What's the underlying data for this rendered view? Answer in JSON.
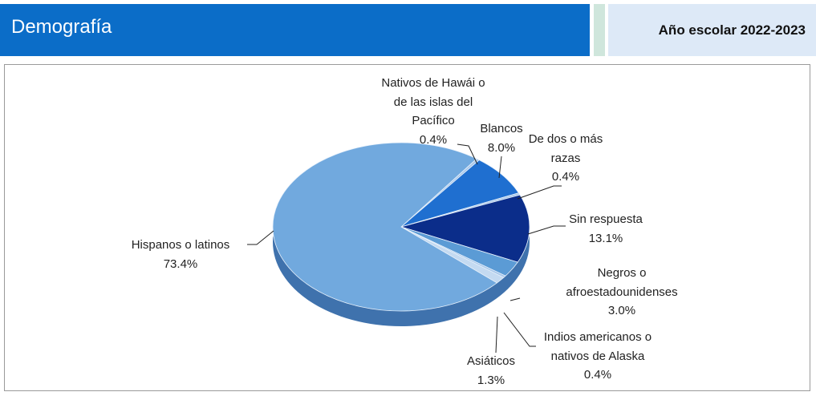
{
  "header": {
    "title": "Demografía",
    "school_year": "Año escolar 2022-2023"
  },
  "chart_data": {
    "type": "pie",
    "categories": [
      "Nativos de Hawái o de las islas del Pacífico",
      "Blancos",
      "De dos o más razas",
      "Sin respuesta",
      "Negros o afroestadounidenses",
      "Indios americanos o nativos de Alaska",
      "Asiáticos",
      "Hispanos o latinos"
    ],
    "values": [
      0.4,
      8.0,
      0.4,
      13.1,
      3.0,
      0.4,
      1.3,
      73.4
    ],
    "value_labels": [
      "0.4%",
      "8.0%",
      "0.4%",
      "13.1%",
      "3.0%",
      "0.4%",
      "1.3%",
      "73.4%"
    ],
    "colors": [
      "#a9c8ea",
      "#1f6fd0",
      "#a9c8ea",
      "#0b2d8a",
      "#5b9bd5",
      "#a9c8ea",
      "#c4daf1",
      "#71a9de"
    ]
  }
}
